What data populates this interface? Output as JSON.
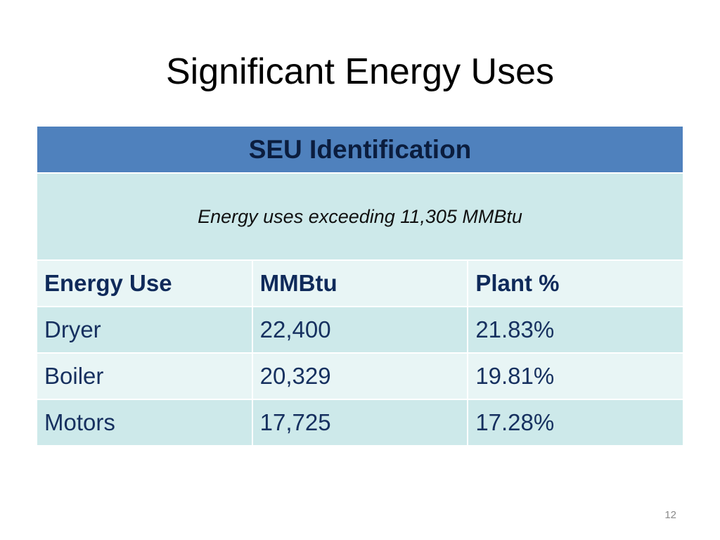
{
  "slide": {
    "title": "Significant Energy Uses",
    "page_number": "12"
  },
  "table": {
    "header": "SEU Identification",
    "subheader": "Energy uses exceeding 11,305 MMBtu",
    "columns": [
      "Energy Use",
      "MMBtu",
      "Plant %"
    ],
    "rows": [
      {
        "energy_use": "Dryer",
        "mmbtu": "22,400",
        "plant_pct": "21.83%"
      },
      {
        "energy_use": "Boiler",
        "mmbtu": "20,329",
        "plant_pct": "19.81%"
      },
      {
        "energy_use": "Motors",
        "mmbtu": "17,725",
        "plant_pct": "17.28%"
      }
    ]
  },
  "colors": {
    "header_bg": "#4f81bd",
    "band_dark": "#cde9ea",
    "band_light": "#e8f5f5",
    "text_dark_blue": "#16305f"
  }
}
